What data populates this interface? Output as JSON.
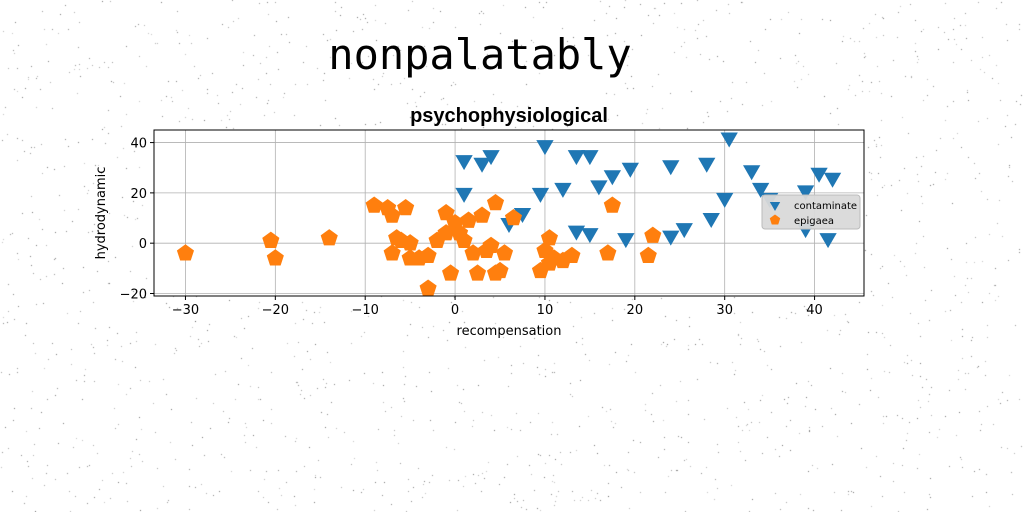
{
  "figure": {
    "suptitle": "nonpalatably"
  },
  "chart_data": {
    "type": "scatter",
    "title": "psychophysiological",
    "xlabel": "recompensation",
    "ylabel": "hydrodynamic",
    "xlim": [
      -33.5,
      45.5
    ],
    "ylim": [
      -21,
      45
    ],
    "xticks": [
      -30,
      -20,
      -10,
      0,
      10,
      20,
      30,
      40
    ],
    "yticks": [
      -20,
      0,
      20,
      40
    ],
    "grid": true,
    "legend_position": "center-right",
    "series": [
      {
        "name": "contaminate",
        "marker": "triangle-down",
        "color": "#1f77b4",
        "points": [
          [
            1,
            33
          ],
          [
            3,
            32
          ],
          [
            4,
            35
          ],
          [
            1,
            20
          ],
          [
            6,
            8
          ],
          [
            7.5,
            12
          ],
          [
            10,
            39
          ],
          [
            9.5,
            20
          ],
          [
            12,
            22
          ],
          [
            13.5,
            35
          ],
          [
            15,
            35
          ],
          [
            16,
            23
          ],
          [
            17.5,
            27
          ],
          [
            19.5,
            30
          ],
          [
            24,
            31
          ],
          [
            28,
            32
          ],
          [
            30.5,
            42
          ],
          [
            30,
            18
          ],
          [
            28.5,
            10
          ],
          [
            33,
            29
          ],
          [
            34,
            22
          ],
          [
            35,
            18
          ],
          [
            39,
            21
          ],
          [
            40.5,
            28
          ],
          [
            42,
            26
          ],
          [
            39,
            6
          ],
          [
            41.5,
            2
          ],
          [
            13.5,
            5
          ],
          [
            15,
            4
          ],
          [
            19,
            2
          ],
          [
            24,
            3
          ],
          [
            25.5,
            6
          ]
        ]
      },
      {
        "name": "epigaea",
        "marker": "pentagon",
        "color": "#ff7f0e",
        "points": [
          [
            -30,
            -4
          ],
          [
            -20.5,
            1
          ],
          [
            -20,
            -6
          ],
          [
            -14,
            2
          ],
          [
            -9,
            15
          ],
          [
            -7.5,
            14
          ],
          [
            -7,
            11
          ],
          [
            -5.5,
            14
          ],
          [
            -6.5,
            2
          ],
          [
            -7,
            -4
          ],
          [
            -6,
            1
          ],
          [
            -5,
            0
          ],
          [
            -5,
            -6
          ],
          [
            -4,
            -6
          ],
          [
            -3,
            -5
          ],
          [
            -3,
            -18
          ],
          [
            -2,
            1
          ],
          [
            -1,
            4
          ],
          [
            -1,
            12
          ],
          [
            0,
            8
          ],
          [
            -0.5,
            -12
          ],
          [
            0.5,
            4
          ],
          [
            1,
            1
          ],
          [
            1.5,
            9
          ],
          [
            2,
            -4
          ],
          [
            2.5,
            -12
          ],
          [
            3,
            11
          ],
          [
            3.5,
            -3
          ],
          [
            4,
            -1
          ],
          [
            4.5,
            -12
          ],
          [
            4.5,
            16
          ],
          [
            5,
            -11
          ],
          [
            5.5,
            -4
          ],
          [
            6.5,
            10
          ],
          [
            9.5,
            -11
          ],
          [
            10,
            -3
          ],
          [
            10.5,
            2
          ],
          [
            11,
            -6
          ],
          [
            12,
            -7
          ],
          [
            13,
            -5
          ],
          [
            17,
            -4
          ],
          [
            17.5,
            15
          ],
          [
            21.5,
            -5
          ],
          [
            22,
            3
          ],
          [
            10.5,
            -8
          ]
        ]
      }
    ]
  }
}
